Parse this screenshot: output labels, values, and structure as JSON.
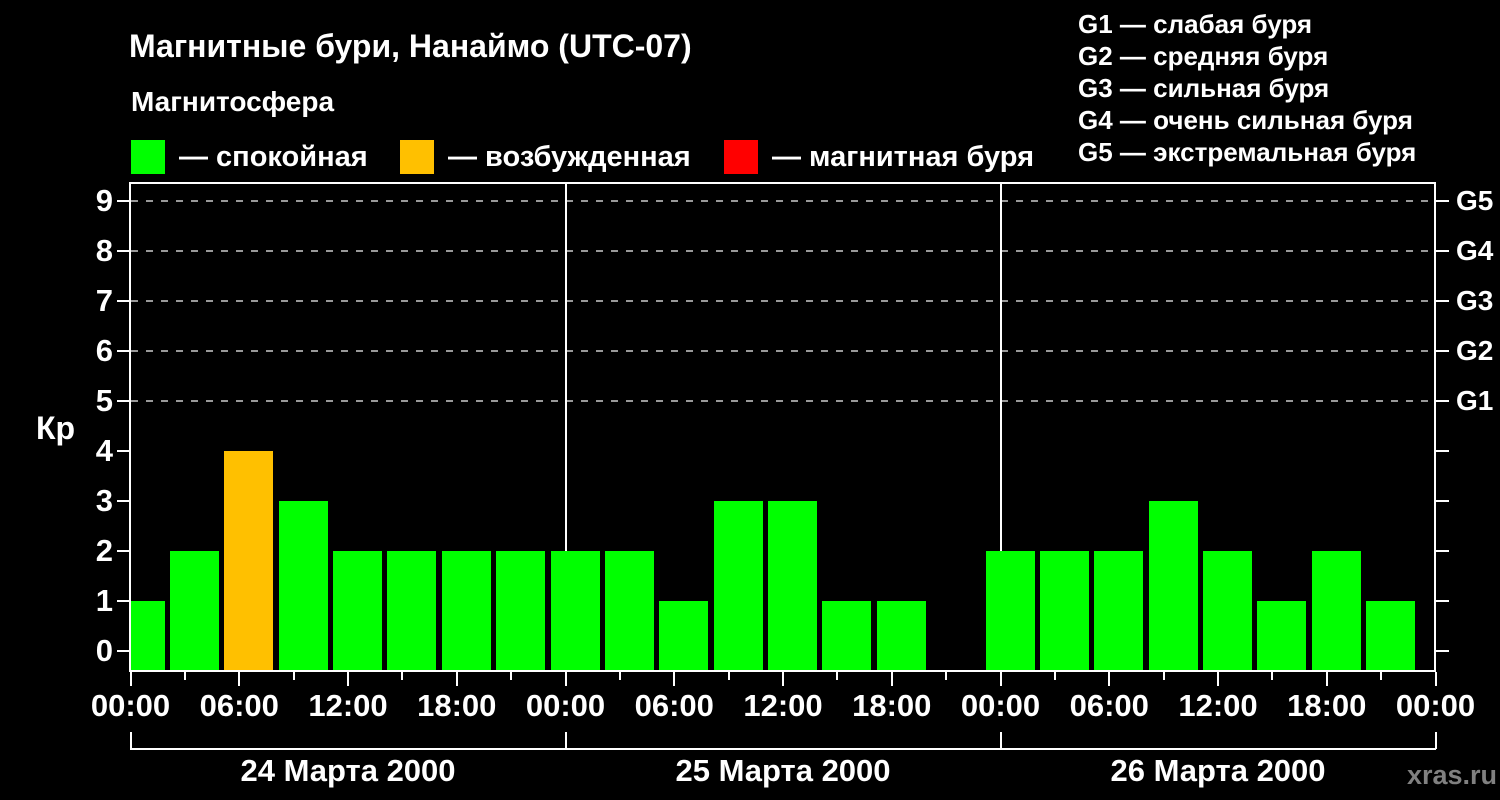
{
  "title": "Магнитные бури, Нанаймо (UTC-07)",
  "subtitle": "Магнитосфера",
  "legend": {
    "items": [
      {
        "name": "quiet",
        "label": "— спокойная",
        "color": "#00ff00"
      },
      {
        "name": "excited",
        "label": "— возбужденная",
        "color": "#ffc000"
      },
      {
        "name": "storm",
        "label": "— магнитная буря",
        "color": "#ff0000"
      }
    ]
  },
  "storm_scale": {
    "items": [
      "G1 — слабая буря",
      "G2 — средняя буря",
      "G3 — сильная буря",
      "G4 — очень сильная буря",
      "G5 — экстремальная буря"
    ]
  },
  "watermark": "xras.ru",
  "chart_data": {
    "type": "bar",
    "title": "Магнитные бури, Нанаймо (UTC-07)",
    "ylabel": "Кр",
    "ylim": [
      0,
      9
    ],
    "yticks": [
      0,
      1,
      2,
      3,
      4,
      5,
      6,
      7,
      8,
      9
    ],
    "gridlines_at": [
      5,
      6,
      7,
      8,
      9
    ],
    "right_axis_labels": [
      {
        "label": "G1",
        "kp": 5
      },
      {
        "label": "G2",
        "kp": 6
      },
      {
        "label": "G3",
        "kp": 7
      },
      {
        "label": "G4",
        "kp": 8
      },
      {
        "label": "G5",
        "kp": 9
      }
    ],
    "interval_hours": 3,
    "x_major_tick_labels": [
      "00:00",
      "06:00",
      "12:00",
      "18:00",
      "00:00",
      "06:00",
      "12:00",
      "18:00",
      "00:00",
      "06:00",
      "12:00",
      "18:00",
      "00:00"
    ],
    "colors": {
      "quiet": "#00ff00",
      "excited": "#ffc000",
      "storm": "#ff0000"
    },
    "color_rules": {
      "quiet_max_kp": 3,
      "excited_kp": 4,
      "storm_min_kp": 5
    },
    "days": [
      {
        "date": "24 Марта 2000",
        "values": [
          1,
          2,
          4,
          3,
          2,
          2,
          2,
          2
        ]
      },
      {
        "date": "25 Марта 2000",
        "values": [
          2,
          2,
          1,
          3,
          3,
          1,
          1,
          null
        ]
      },
      {
        "date": "26 Марта 2000",
        "values": [
          2,
          2,
          2,
          3,
          2,
          1,
          2,
          1
        ]
      }
    ]
  }
}
